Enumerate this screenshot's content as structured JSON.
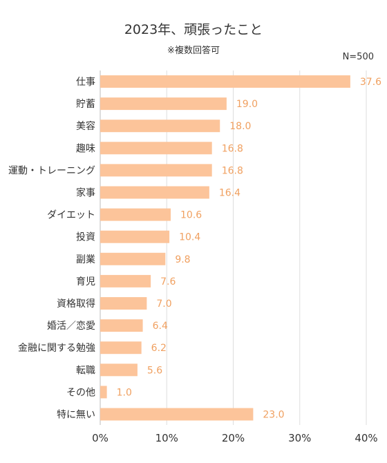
{
  "chart_data": {
    "type": "bar",
    "orientation": "horizontal",
    "title": "2023年、頑張ったこと",
    "subtitle": "※複数回答可",
    "note": "N=500",
    "categories": [
      "仕事",
      "貯蓄",
      "美容",
      "趣味",
      "運動・トレーニング",
      "家事",
      "ダイエット",
      "投資",
      "副業",
      "育児",
      "資格取得",
      "婚活／恋愛",
      "金融に関する勉強",
      "転職",
      "その他",
      "特に無い"
    ],
    "values": [
      37.6,
      19.0,
      18.0,
      16.8,
      16.8,
      16.4,
      10.6,
      10.4,
      9.8,
      7.6,
      7.0,
      6.4,
      6.2,
      5.6,
      1.0,
      23.0
    ],
    "value_labels": [
      "37.6",
      "19.0",
      "18.0",
      "16.8",
      "16.8",
      "16.4",
      "10.6",
      "10.4",
      "9.8",
      "7.6",
      "7.0",
      "6.4",
      "6.2",
      "5.6",
      "1.0",
      "23.0"
    ],
    "xlim": [
      0,
      40
    ],
    "x_ticks": [
      0,
      10,
      20,
      30,
      40
    ],
    "x_tick_labels": [
      "0%",
      "10%",
      "20%",
      "30%",
      "40%"
    ],
    "grid": true,
    "bar_color": "#fcc49a",
    "label_color": "#f0a060"
  }
}
